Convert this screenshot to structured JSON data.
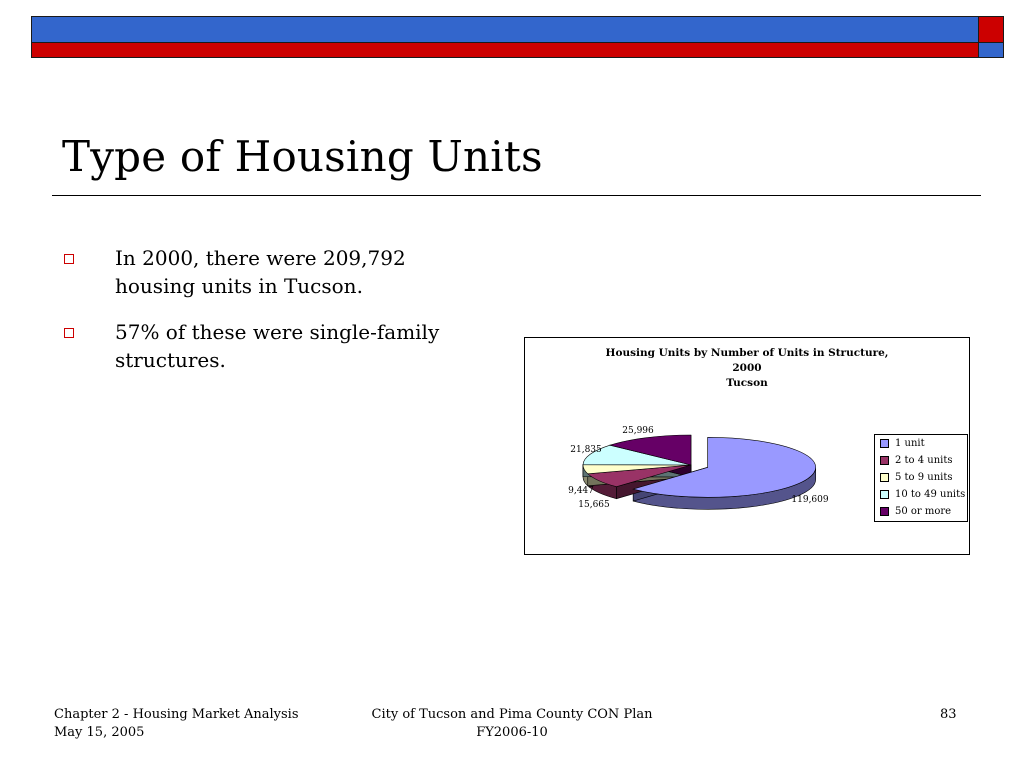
{
  "slide": {
    "title": "Type of Housing Units",
    "bullets": [
      "In 2000, there were 209,792 housing units in Tucson.",
      "57% of these were single-family structures."
    ]
  },
  "theme": {
    "accent_blue": "#3366cc",
    "accent_red": "#cc0000"
  },
  "chart_data": {
    "type": "pie",
    "title_lines": [
      "Housing Units by Number of Units in Structure,",
      "2000",
      "Tucson"
    ],
    "categories": [
      "1 unit",
      "2 to 4 units",
      "5 to 9 units",
      "10 to 49 units",
      "50 or more"
    ],
    "values": [
      119609,
      15665,
      9447,
      21835,
      25996
    ],
    "data_labels": [
      "119,609",
      "15,665",
      "9,447",
      "21,835",
      "25,996"
    ],
    "colors": [
      "#9999ff",
      "#993366",
      "#ffffcc",
      "#ccffff",
      "#660066"
    ],
    "exploded": true,
    "three_d": true,
    "legend_position": "right"
  },
  "footer": {
    "left_line1": "Chapter 2 - Housing Market Analysis",
    "left_line2": "May 15, 2005",
    "center_line1": "City of Tucson and Pima County CON Plan",
    "center_line2": "FY2006-10",
    "page_number": "83"
  }
}
